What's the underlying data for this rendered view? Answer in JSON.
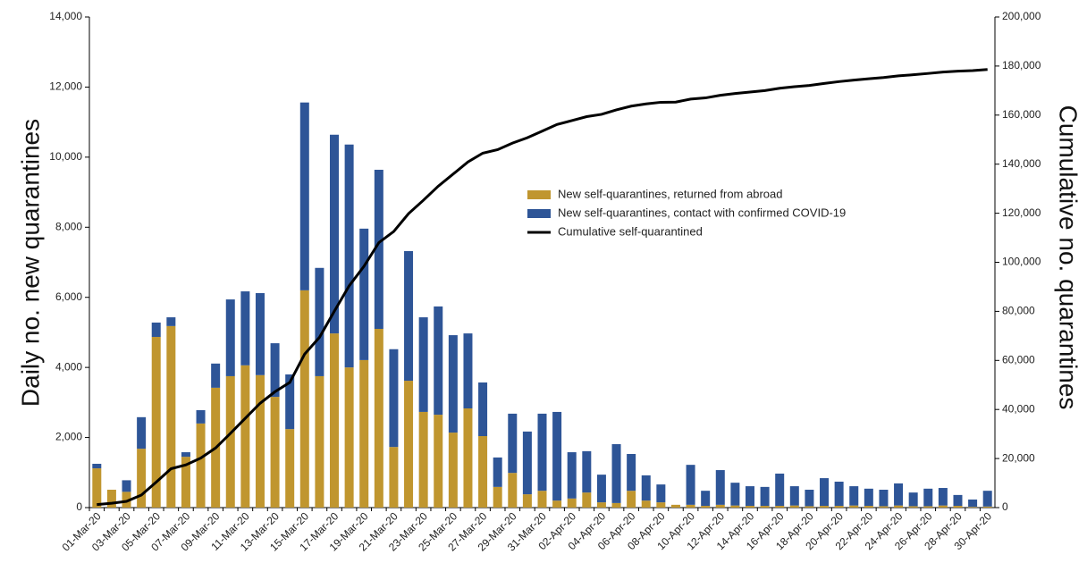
{
  "chart_data": {
    "type": "bar",
    "categories": [
      "01-Mar-20",
      null,
      "03-Mar-20",
      null,
      "05-Mar-20",
      null,
      "07-Mar-20",
      null,
      "09-Mar-20",
      null,
      "11-Mar-20",
      null,
      "13-Mar-20",
      null,
      "15-Mar-20",
      null,
      "17-Mar-20",
      null,
      "19-Mar-20",
      null,
      "21-Mar-20",
      null,
      "23-Mar-20",
      null,
      "25-Mar-20",
      null,
      "27-Mar-20",
      null,
      "29-Mar-20",
      null,
      "31-Mar-20",
      null,
      "02-Apr-20",
      null,
      "04-Apr-20",
      null,
      "06-Apr-20",
      null,
      "08-Apr-20",
      null,
      "10-Apr-20",
      null,
      "12-Apr-20",
      null,
      "14-Apr-20",
      null,
      "16-Apr-20",
      null,
      "18-Apr-20",
      null,
      "20-Apr-20",
      null,
      "22-Apr-20",
      null,
      "24-Apr-20",
      null,
      "26-Apr-20",
      null,
      "28-Apr-20",
      null,
      "30-Apr-20"
    ],
    "series": [
      {
        "name": "New self-quarantines, returned from abroad",
        "color": "#c0962f",
        "stacked": true,
        "values": [
          1120,
          510,
          450,
          1680,
          4870,
          5180,
          1450,
          2400,
          3420,
          3750,
          4060,
          3780,
          3160,
          2240,
          6200,
          3750,
          4970,
          4000,
          4210,
          5100,
          1730,
          3620,
          2730,
          2650,
          2140,
          2830,
          2040,
          590,
          990,
          380,
          480,
          200,
          260,
          430,
          150,
          130,
          480,
          200,
          150,
          80,
          80,
          50,
          80,
          60,
          50,
          50,
          50,
          60,
          40,
          50,
          50,
          60,
          50,
          40,
          60,
          40,
          40,
          60,
          50,
          20,
          30
        ]
      },
      {
        "name": "New self-quarantines, contact with confirmed COVID-19",
        "color": "#2e5597",
        "stacked": true,
        "values": [
          130,
          0,
          330,
          900,
          410,
          250,
          130,
          380,
          690,
          2190,
          2110,
          2340,
          1530,
          1560,
          5360,
          3090,
          5670,
          6360,
          3750,
          4540,
          2790,
          3700,
          2700,
          3090,
          2780,
          2140,
          1530,
          840,
          1690,
          1790,
          2200,
          2530,
          1320,
          1180,
          790,
          1680,
          1050,
          720,
          510,
          0,
          1140,
          430,
          990,
          650,
          560,
          540,
          920,
          550,
          470,
          790,
          690,
          550,
          490,
          470,
          630,
          390,
          500,
          500,
          310,
          210,
          450
        ]
      },
      {
        "name": "Cumulative self-quarantined",
        "color": "#000000",
        "type": "line",
        "axis": "y2",
        "values": [
          1250,
          1760,
          2540,
          5120,
          10400,
          15830,
          17410,
          20190,
          24300,
          30240,
          36410,
          42530,
          47220,
          51020,
          62580,
          69420,
          80060,
          90420,
          98380,
          108020,
          112540,
          119860,
          125290,
          131030,
          135950,
          140920,
          144490,
          145920,
          148600,
          150770,
          153450,
          156180,
          157760,
          159370,
          160310,
          162120,
          163650,
          164570,
          165230,
          165310,
          166530,
          167010,
          168080,
          168790,
          169400,
          169990,
          170960,
          171570,
          172080,
          172920,
          173660,
          174270,
          174810,
          175320,
          176010,
          176440,
          176980,
          177540,
          177900,
          178130,
          178610
        ]
      }
    ],
    "ylabel": "Daily no. new quarantines",
    "y2label": "Cumulative no. quarantines",
    "ylim": [
      0,
      14000
    ],
    "yticks": [
      0,
      {
        "value": 2000,
        "label": "2,000"
      },
      {
        "value": 4000,
        "label": "4,000"
      },
      {
        "value": 6000,
        "label": "6,000"
      },
      {
        "value": 8000,
        "label": "8,000"
      },
      {
        "value": 10000,
        "label": "10,000"
      },
      {
        "value": 12000,
        "label": "12,000"
      },
      {
        "value": 14000,
        "label": "14,000"
      }
    ],
    "y2lim": [
      0,
      200000
    ],
    "y2ticks": [
      0,
      {
        "value": 20000,
        "label": "20,000"
      },
      {
        "value": 40000,
        "label": "40,000"
      },
      {
        "value": 60000,
        "label": "60,000"
      },
      {
        "value": 80000,
        "label": "80,000"
      },
      {
        "value": 100000,
        "label": "100,000"
      },
      {
        "value": 120000,
        "label": "120,000"
      },
      {
        "value": 140000,
        "label": "140,000"
      },
      {
        "value": 160000,
        "label": "160,000"
      },
      {
        "value": 180000,
        "label": "180,000"
      },
      {
        "value": 200000,
        "label": "200,000"
      }
    ],
    "grid": false,
    "legend": "center"
  }
}
